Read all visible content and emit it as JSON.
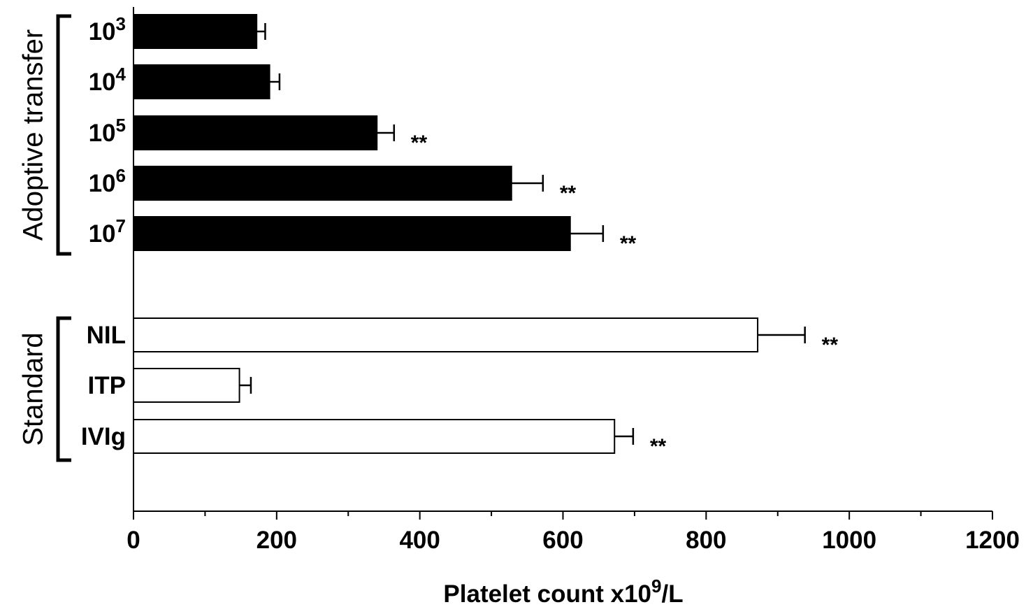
{
  "chart_data": {
    "type": "bar",
    "orientation": "horizontal",
    "xlabel": {
      "main": "Platelet count x10",
      "sup": "9",
      "tail": "/L"
    },
    "xlim": [
      0,
      1200
    ],
    "xticks": [
      "0",
      "200",
      "400",
      "600",
      "800",
      "1000",
      "1200"
    ],
    "groups": [
      {
        "label": "Adoptive transfer",
        "fill": "#000000"
      },
      {
        "label": "Standard",
        "fill": "#ffffff"
      }
    ],
    "bars": [
      {
        "group": 0,
        "label": "10",
        "sup": "3",
        "value": 172,
        "error": 12,
        "sig": ""
      },
      {
        "group": 0,
        "label": "10",
        "sup": "4",
        "value": 190,
        "error": 14,
        "sig": ""
      },
      {
        "group": 0,
        "label": "10",
        "sup": "5",
        "value": 340,
        "error": 24,
        "sig": "**"
      },
      {
        "group": 0,
        "label": "10",
        "sup": "6",
        "value": 528,
        "error": 44,
        "sig": "**"
      },
      {
        "group": 0,
        "label": "10",
        "sup": "7",
        "value": 610,
        "error": 46,
        "sig": "**"
      },
      {
        "group": 1,
        "label": "NIL",
        "sup": "",
        "value": 872,
        "error": 66,
        "sig": "**"
      },
      {
        "group": 1,
        "label": "ITP",
        "sup": "",
        "value": 148,
        "error": 16,
        "sig": ""
      },
      {
        "group": 1,
        "label": "IVIg",
        "sup": "",
        "value": 672,
        "error": 26,
        "sig": "**"
      }
    ]
  }
}
